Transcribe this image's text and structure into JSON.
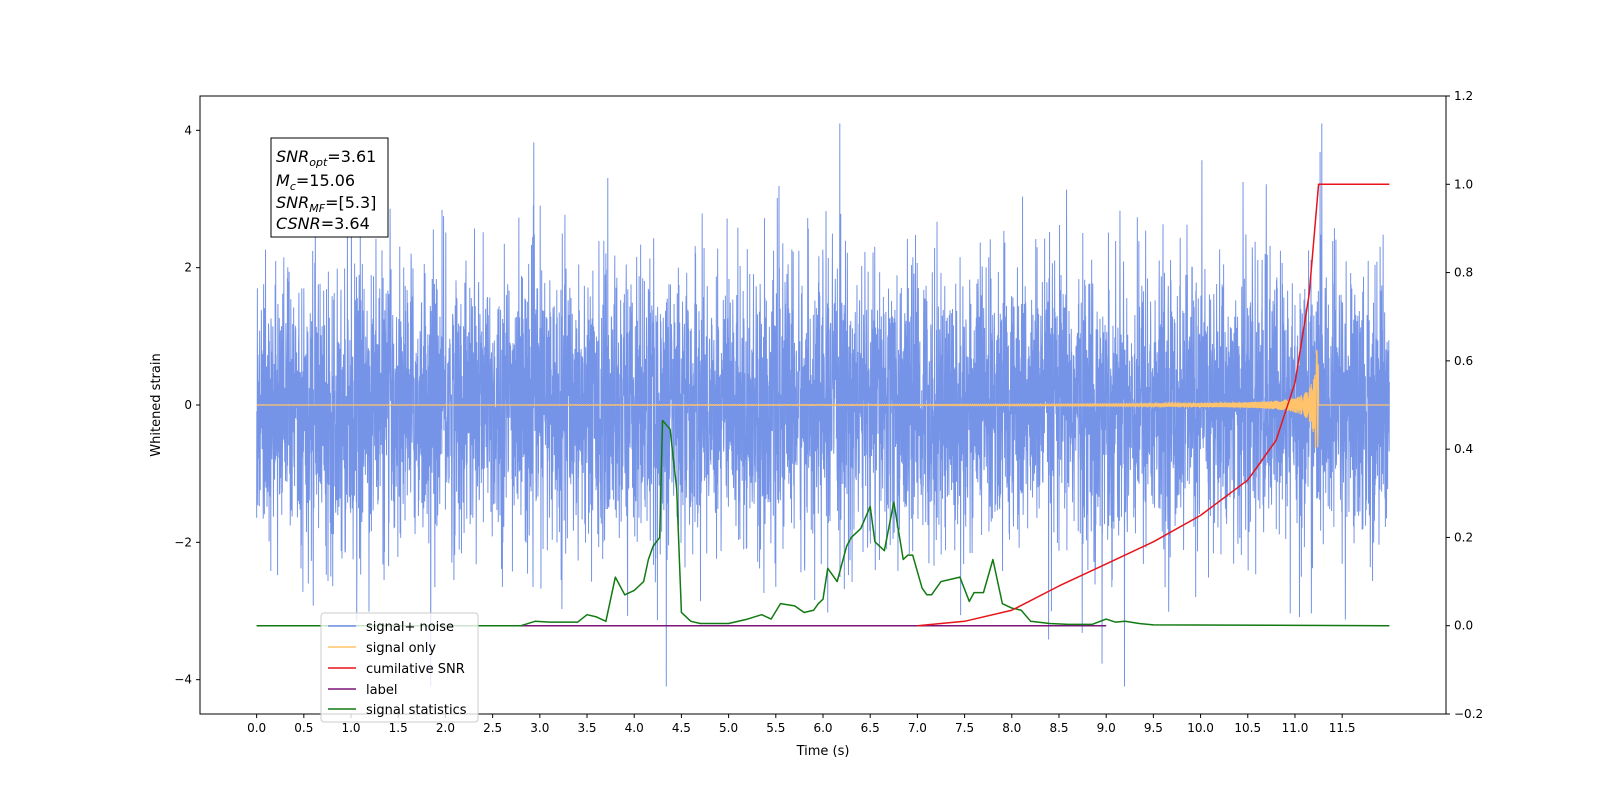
{
  "chart_data": {
    "type": "line",
    "xlabel": "Time (s)",
    "ylabel": "Whitened strain",
    "xlim": [
      -0.6,
      12.6
    ],
    "ylim": [
      -4.5,
      4.5
    ],
    "y2lim": [
      -0.2,
      1.2
    ],
    "xticks": [
      "0.0",
      "0.5",
      "1.0",
      "1.5",
      "2.0",
      "2.5",
      "3.0",
      "3.5",
      "4.0",
      "4.5",
      "5.0",
      "5.5",
      "6.0",
      "6.5",
      "7.0",
      "7.5",
      "8.0",
      "8.5",
      "9.0",
      "9.5",
      "10.0",
      "10.5",
      "11.0",
      "11.5"
    ],
    "yticks": [
      "4",
      "2",
      "0",
      "−2",
      "−4"
    ],
    "y2ticks": [
      "1.2",
      "1.0",
      "0.8",
      "0.6",
      "0.4",
      "0.2",
      "0.0",
      "−0.2"
    ],
    "annotation": {
      "snr_opt": {
        "sym": "SNR",
        "sub": "opt",
        "value": "=3.61"
      },
      "mc": {
        "sym": "M",
        "sub": "c",
        "value": "=15.06"
      },
      "snr_mf": {
        "sym": "SNR",
        "sub": "MF",
        "value": "=[5.3]"
      },
      "csnr": {
        "sym": "CSNR",
        "value": "=3.64"
      }
    },
    "legend_position": "lower-left",
    "series": [
      {
        "key": "noise",
        "name": "signal+ noise",
        "color": "#6f8ee6",
        "axis": "left",
        "description": "whitened noise spanning about -2.5 to 2.5 with spikes up to about 4.1, from t=0 to t=12"
      },
      {
        "key": "signal",
        "name": "signal only",
        "color": "#ffc36b",
        "axis": "left",
        "description": "chirp signal near zero, growing to about +0.75/-0.85 at merger t=11.25"
      },
      {
        "key": "csnr",
        "name": "cumilative SNR",
        "color": "#e8141a",
        "axis": "right",
        "points": [
          [
            7.0,
            0.0
          ],
          [
            7.5,
            0.01
          ],
          [
            8.0,
            0.035
          ],
          [
            8.5,
            0.09
          ],
          [
            9.0,
            0.14
          ],
          [
            9.5,
            0.19
          ],
          [
            10.0,
            0.25
          ],
          [
            10.5,
            0.33
          ],
          [
            10.8,
            0.42
          ],
          [
            11.0,
            0.55
          ],
          [
            11.15,
            0.75
          ],
          [
            11.25,
            1.0
          ],
          [
            12.0,
            1.0
          ]
        ]
      },
      {
        "key": "label",
        "name": "label",
        "color": "#7a1478",
        "axis": "right",
        "points": [
          [
            0.0,
            0.0
          ],
          [
            9.0,
            0.0
          ]
        ]
      },
      {
        "key": "stats",
        "name": "signal statistics",
        "color": "#127a12",
        "axis": "right",
        "points": [
          [
            0.0,
            0.0
          ],
          [
            2.8,
            0.0
          ],
          [
            2.95,
            0.01
          ],
          [
            3.1,
            0.008
          ],
          [
            3.4,
            0.008
          ],
          [
            3.5,
            0.025
          ],
          [
            3.6,
            0.02
          ],
          [
            3.7,
            0.01
          ],
          [
            3.8,
            0.11
          ],
          [
            3.9,
            0.07
          ],
          [
            4.0,
            0.08
          ],
          [
            4.05,
            0.09
          ],
          [
            4.1,
            0.1
          ],
          [
            4.15,
            0.15
          ],
          [
            4.2,
            0.18
          ],
          [
            4.27,
            0.2
          ],
          [
            4.3,
            0.465
          ],
          [
            4.38,
            0.445
          ],
          [
            4.45,
            0.31
          ],
          [
            4.5,
            0.03
          ],
          [
            4.6,
            0.01
          ],
          [
            4.7,
            0.005
          ],
          [
            5.0,
            0.005
          ],
          [
            5.2,
            0.015
          ],
          [
            5.35,
            0.025
          ],
          [
            5.45,
            0.015
          ],
          [
            5.55,
            0.05
          ],
          [
            5.7,
            0.045
          ],
          [
            5.8,
            0.03
          ],
          [
            5.9,
            0.035
          ],
          [
            5.95,
            0.05
          ],
          [
            6.0,
            0.06
          ],
          [
            6.05,
            0.13
          ],
          [
            6.15,
            0.1
          ],
          [
            6.25,
            0.18
          ],
          [
            6.3,
            0.2
          ],
          [
            6.4,
            0.22
          ],
          [
            6.5,
            0.27
          ],
          [
            6.55,
            0.19
          ],
          [
            6.65,
            0.17
          ],
          [
            6.75,
            0.28
          ],
          [
            6.85,
            0.15
          ],
          [
            6.9,
            0.16
          ],
          [
            6.95,
            0.16
          ],
          [
            7.05,
            0.085
          ],
          [
            7.1,
            0.07
          ],
          [
            7.15,
            0.07
          ],
          [
            7.25,
            0.1
          ],
          [
            7.35,
            0.105
          ],
          [
            7.45,
            0.11
          ],
          [
            7.55,
            0.055
          ],
          [
            7.6,
            0.075
          ],
          [
            7.7,
            0.075
          ],
          [
            7.8,
            0.15
          ],
          [
            7.9,
            0.05
          ],
          [
            8.0,
            0.04
          ],
          [
            8.1,
            0.035
          ],
          [
            8.2,
            0.01
          ],
          [
            8.4,
            0.005
          ],
          [
            8.6,
            0.003
          ],
          [
            8.85,
            0.003
          ],
          [
            9.0,
            0.015
          ],
          [
            9.1,
            0.008
          ],
          [
            9.2,
            0.01
          ],
          [
            9.35,
            0.005
          ],
          [
            9.5,
            0.002
          ],
          [
            12.0,
            0.0
          ]
        ]
      }
    ]
  }
}
